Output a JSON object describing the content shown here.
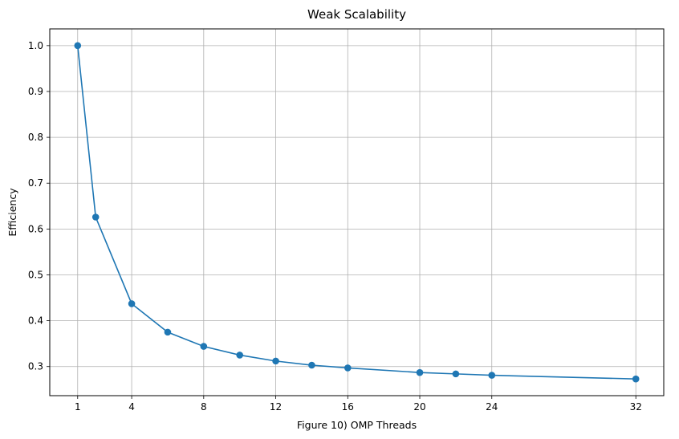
{
  "chart_data": {
    "type": "line",
    "title": "Weak Scalability",
    "xlabel": "Figure 10) OMP Threads",
    "ylabel": "Efficiency",
    "xlim": [
      -0.55,
      33.55
    ],
    "ylim": [
      0.2365,
      1.0365
    ],
    "xticks": [
      1,
      4,
      8,
      12,
      16,
      20,
      24,
      32
    ],
    "xtick_labels": [
      "1",
      "4",
      "8",
      "12",
      "16",
      "20",
      "24",
      "32"
    ],
    "yticks": [
      0.3,
      0.4,
      0.5,
      0.6,
      0.7,
      0.8,
      0.9,
      1.0
    ],
    "ytick_labels": [
      "0.3",
      "0.4",
      "0.5",
      "0.6",
      "0.7",
      "0.8",
      "0.9",
      "1.0"
    ],
    "grid": true,
    "series": [
      {
        "color": "#1f77b4",
        "marker": "circle",
        "x": [
          1,
          2,
          4,
          6,
          8,
          10,
          12,
          14,
          16,
          20,
          22,
          24,
          32
        ],
        "y": [
          1.0,
          0.626,
          0.437,
          0.375,
          0.344,
          0.325,
          0.312,
          0.303,
          0.297,
          0.287,
          0.284,
          0.281,
          0.273
        ]
      }
    ]
  }
}
